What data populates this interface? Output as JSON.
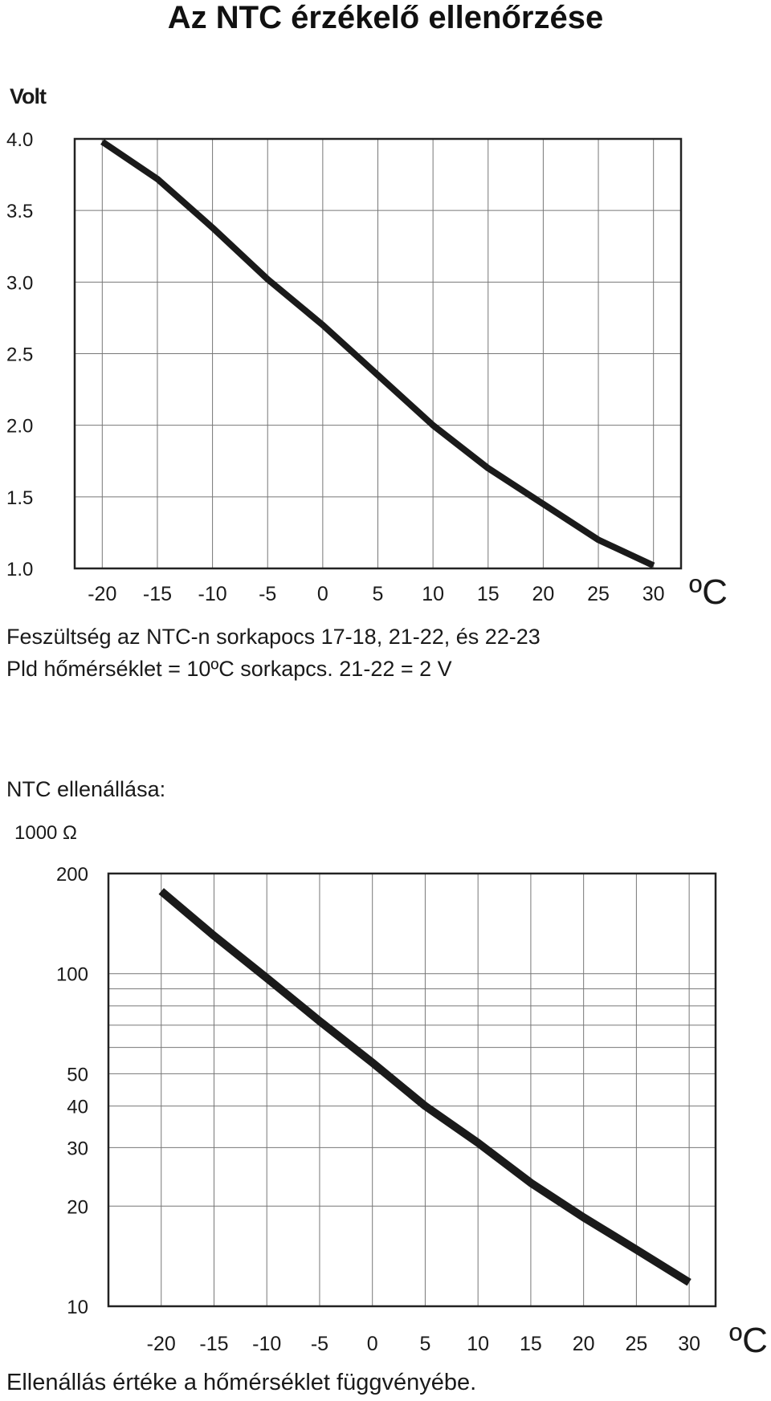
{
  "title": "Az NTC érzékelő ellenőrzése",
  "voltage_section": {
    "description_line1": "Feszültség az NTC-n sorkapocs 17-18, 21-22, és 22-23",
    "description_line2": "Pld hőmérséklet = 10ºC  sorkapcs. 21-22 = 2 V"
  },
  "resistance_section": {
    "heading": "NTC ellenállása:",
    "caption": "Ellenállás értéke a hőmérséklet függvényébe."
  },
  "colors": {
    "line": "#1a1a1a",
    "grid": "#777777",
    "frame": "#222222"
  },
  "chart_data": [
    {
      "type": "line",
      "title": "",
      "xlabel": "ºC",
      "ylabel": "Volt",
      "x_ticks": [
        "-20",
        "-15",
        "-10",
        "-5",
        "0",
        "5",
        "10",
        "15",
        "20",
        "25",
        "30"
      ],
      "y_ticks": [
        "4.0",
        "3.5",
        "3.0",
        "2.5",
        "2.0",
        "1.5",
        "1.0"
      ],
      "xlim": [
        -22.5,
        32.5
      ],
      "ylim": [
        1.0,
        4.0
      ],
      "grid": true,
      "series": [
        {
          "x": [
            -20,
            -15,
            -10,
            -5,
            0,
            5,
            10,
            15,
            20,
            25,
            30
          ],
          "y": [
            3.98,
            3.72,
            3.38,
            3.02,
            2.7,
            2.35,
            2.0,
            1.7,
            1.45,
            1.2,
            1.02
          ]
        }
      ]
    },
    {
      "type": "line",
      "title": "",
      "xlabel": "ºC",
      "ylabel": "1000 Ω",
      "yscale": "log",
      "x_ticks": [
        "-20",
        "-15",
        "-10",
        "-5",
        "0",
        "5",
        "10",
        "15",
        "20",
        "25",
        "30"
      ],
      "y_ticks": [
        "200",
        "100",
        "50",
        "40",
        "30",
        "20",
        "10"
      ],
      "y_tick_values": [
        200,
        100,
        50,
        40,
        30,
        20,
        10
      ],
      "y_minor": [
        90,
        80,
        70,
        60
      ],
      "xlim": [
        -25,
        32.5
      ],
      "ylim": [
        10,
        200
      ],
      "grid": true,
      "series": [
        {
          "x": [
            -20,
            -15,
            -10,
            -5,
            0,
            5,
            10,
            15,
            20,
            25,
            30
          ],
          "y": [
            177,
            130,
            97,
            72,
            54,
            40,
            31,
            23.5,
            18.5,
            14.8,
            11.8
          ]
        }
      ]
    }
  ]
}
